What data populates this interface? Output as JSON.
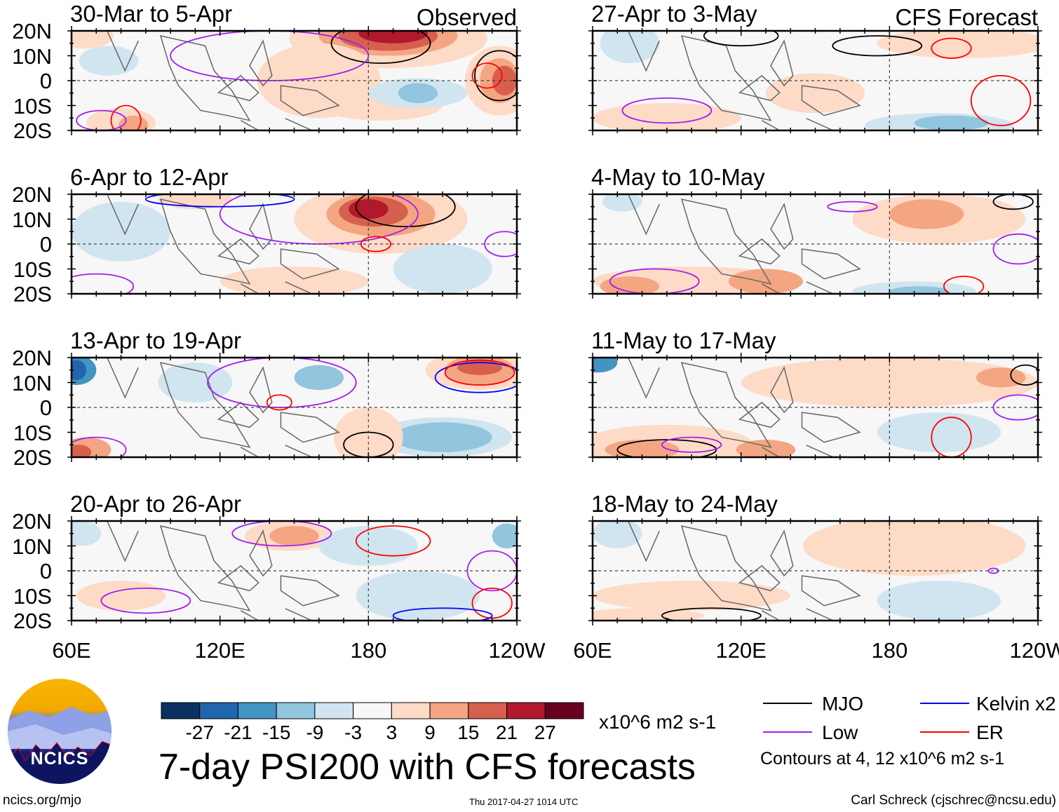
{
  "chart_data": {
    "type": "heatmap",
    "title": "7-day PSI200 with CFS forecasts",
    "column_labels": [
      "Observed",
      "CFS Forecast"
    ],
    "panels": [
      {
        "title": "30-Mar to 5-Apr",
        "kind": "observed"
      },
      {
        "title": "6-Apr to 12-Apr",
        "kind": "observed"
      },
      {
        "title": "13-Apr to 19-Apr",
        "kind": "observed"
      },
      {
        "title": "20-Apr to 26-Apr",
        "kind": "observed"
      },
      {
        "title": "27-Apr to 3-May",
        "kind": "forecast"
      },
      {
        "title": "4-May to 10-May",
        "kind": "forecast"
      },
      {
        "title": "11-May to 17-May",
        "kind": "forecast"
      },
      {
        "title": "18-May to 24-May",
        "kind": "forecast"
      }
    ],
    "y_ticks": [
      "20N",
      "10N",
      "0",
      "10S",
      "20S"
    ],
    "x_ticks": [
      "60E",
      "120E",
      "180",
      "120W"
    ],
    "ylim": [
      -20,
      20
    ],
    "xlim": [
      60,
      240
    ],
    "colorbar": {
      "labels": [
        "-27",
        "-21",
        "-15",
        "-9",
        "-3",
        "3",
        "9",
        "15",
        "21",
        "27"
      ],
      "colors": [
        "#0a3161",
        "#2166ac",
        "#4393c3",
        "#92c5de",
        "#d1e5f0",
        "#f7f7f7",
        "#fddbc7",
        "#f4a582",
        "#d6604d",
        "#b2182b",
        "#67001f"
      ],
      "units": "x10^6 m2 s-1"
    },
    "legend": [
      {
        "label": "MJO",
        "color": "#000000"
      },
      {
        "label": "Kelvin x2",
        "color": "#0000ff"
      },
      {
        "label": "Low",
        "color": "#a020f0"
      },
      {
        "label": "ER",
        "color": "#ff0000"
      }
    ],
    "contour_note": "Contours at 4, 12 x10^6 m2 s-1"
  },
  "footer": {
    "logo_text": "NCICS",
    "url": "ncics.org/mjo",
    "timestamp": "Thu 2017-04-27 1014 UTC",
    "author": "Carl Schreck (cjschrec@ncsu.edu)"
  }
}
